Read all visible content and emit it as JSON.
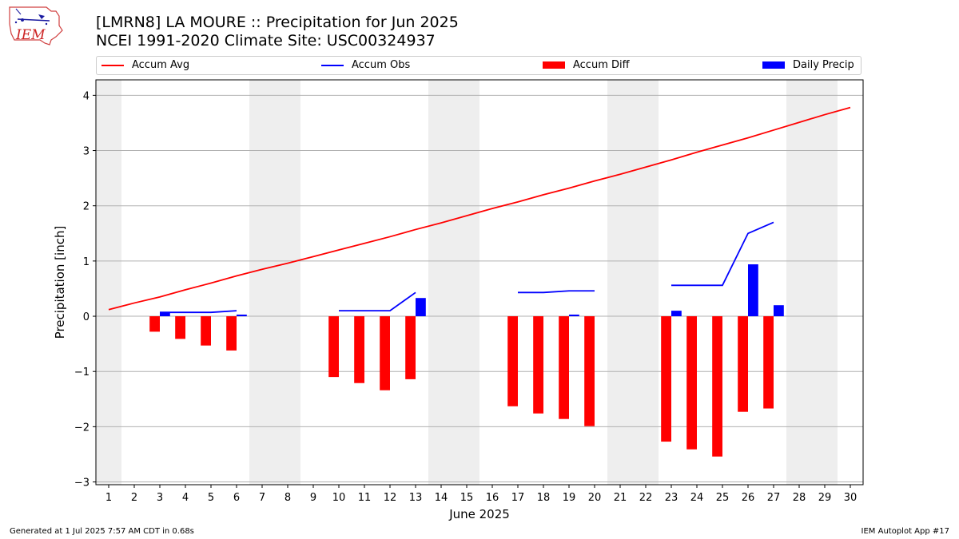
{
  "logo": {
    "text": "IEM"
  },
  "footer": {
    "generated": "Generated at 1 Jul 2025 7:57 AM CDT in 0.68s",
    "app": "IEM Autoplot App #17"
  },
  "colors": {
    "avg": "#ff0000",
    "obs": "#0000ff",
    "diff": "#ff0000",
    "daily": "#0000ff",
    "weekend": "#eeeeee",
    "grid": "#b0b0b0"
  },
  "chart_data": {
    "type": "bar",
    "title": "[LMRN8] LA MOURE :: Precipitation for Jun 2025",
    "subtitle": "NCEI 1991-2020 Climate Site: USC00324937",
    "xlabel": "June 2025",
    "ylabel": "Precipitation [inch]",
    "ylim": [
      -3.05,
      4.28
    ],
    "yticks": [
      -3,
      -2,
      -1,
      0,
      1,
      2,
      3,
      4
    ],
    "ytick_labels": [
      "−3",
      "−2",
      "−1",
      "0",
      "1",
      "2",
      "3",
      "4"
    ],
    "days": [
      1,
      2,
      3,
      4,
      5,
      6,
      7,
      8,
      9,
      10,
      11,
      12,
      13,
      14,
      15,
      16,
      17,
      18,
      19,
      20,
      21,
      22,
      23,
      24,
      25,
      26,
      27,
      28,
      29,
      30
    ],
    "weekend_bands": [
      [
        0.5,
        1.5
      ],
      [
        6.5,
        8.5
      ],
      [
        13.5,
        15.5
      ],
      [
        20.5,
        22.5
      ],
      [
        27.5,
        29.5
      ]
    ],
    "legend": {
      "placement": "top",
      "entries": [
        "Accum Avg",
        "Accum Obs",
        "Accum Diff",
        "Daily Precip"
      ]
    },
    "series": [
      {
        "name": "Accum Avg",
        "kind": "line",
        "values": [
          0.12,
          0.24,
          0.35,
          0.48,
          0.6,
          0.73,
          0.85,
          0.96,
          1.08,
          1.2,
          1.32,
          1.44,
          1.57,
          1.69,
          1.82,
          1.95,
          2.07,
          2.2,
          2.32,
          2.45,
          2.57,
          2.7,
          2.83,
          2.97,
          3.1,
          3.23,
          3.37,
          3.51,
          3.65,
          3.78
        ]
      },
      {
        "name": "Accum Obs",
        "kind": "line",
        "values": [
          null,
          null,
          0.07,
          0.07,
          0.07,
          0.1,
          null,
          null,
          null,
          0.1,
          0.1,
          0.1,
          0.43,
          null,
          null,
          null,
          0.43,
          0.43,
          0.46,
          0.46,
          null,
          null,
          0.56,
          0.56,
          0.56,
          1.5,
          1.7,
          null,
          null,
          null
        ]
      },
      {
        "name": "Accum Diff",
        "kind": "bar",
        "values": [
          null,
          null,
          -0.28,
          -0.41,
          -0.53,
          -0.62,
          null,
          null,
          null,
          -1.1,
          -1.21,
          -1.34,
          -1.14,
          null,
          null,
          null,
          -1.63,
          -1.76,
          -1.86,
          -1.99,
          null,
          null,
          -2.27,
          -2.41,
          -2.54,
          -1.73,
          -1.67,
          null,
          null,
          null
        ]
      },
      {
        "name": "Daily Precip",
        "kind": "bar",
        "values": [
          null,
          null,
          0.07,
          0,
          0,
          0.03,
          null,
          null,
          null,
          0,
          0,
          0,
          0.33,
          null,
          null,
          null,
          0,
          0,
          0.03,
          0,
          null,
          null,
          0.1,
          0,
          0,
          0.94,
          0.2,
          null,
          null,
          null
        ]
      }
    ]
  }
}
